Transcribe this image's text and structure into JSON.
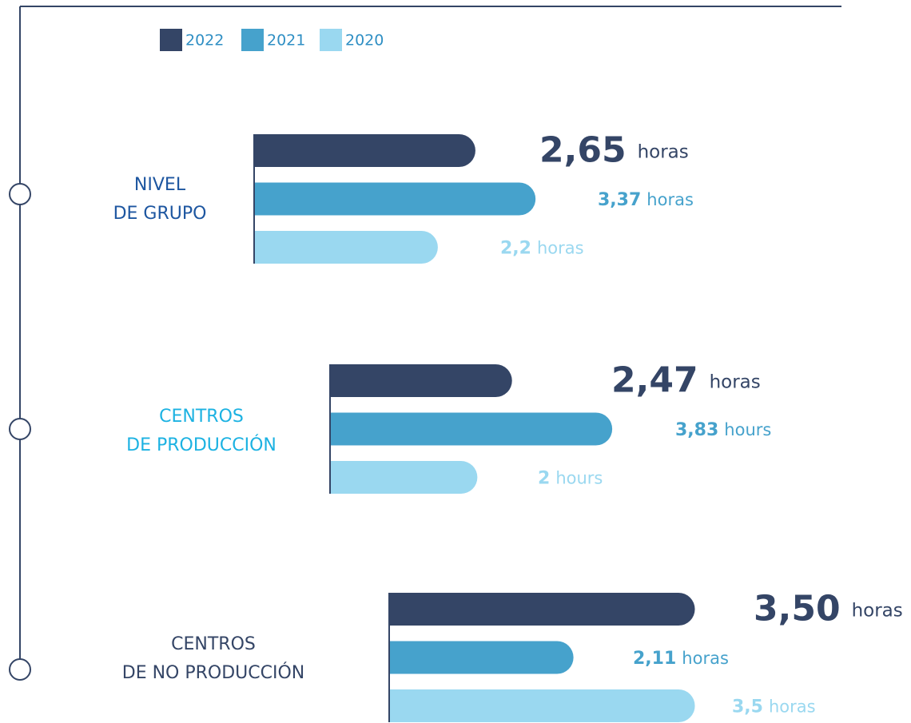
{
  "chart_data": {
    "type": "bar",
    "orientation": "horizontal",
    "categories": [
      [
        "NIVEL",
        "DE GRUPO"
      ],
      [
        "CENTROS",
        "DE PRODUCCIÓN"
      ],
      [
        "CENTROS",
        "DE NO PRODUCCIÓN"
      ]
    ],
    "category_colors": [
      "#1d56a0",
      "#1cb2e2",
      "#344566"
    ],
    "series": [
      {
        "name": "2022",
        "color": "#344566",
        "values": [
          2.65,
          2.47,
          3.5
        ],
        "value_labels": [
          "2,65",
          "2,47",
          "3,50"
        ],
        "units": [
          "horas",
          "horas",
          "horas"
        ]
      },
      {
        "name": "2021",
        "color": "#46a2cc",
        "values": [
          3.37,
          3.83,
          2.11
        ],
        "value_labels": [
          "3,37",
          "3,83",
          "2,11"
        ],
        "units": [
          "horas",
          "hours",
          "horas"
        ]
      },
      {
        "name": "2020",
        "color": "#9ad8f0",
        "values": [
          2.2,
          2,
          3.5
        ],
        "value_labels": [
          "2,2",
          "2",
          "3,5"
        ],
        "units": [
          "horas",
          "hours",
          "horas"
        ]
      }
    ]
  }
}
